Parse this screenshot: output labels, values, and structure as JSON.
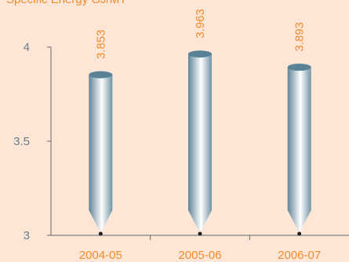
{
  "chart_data": {
    "type": "bar",
    "title": "Specific Energy GJ/MT",
    "categories": [
      "2004-05",
      "2005-06",
      "2006-07"
    ],
    "values": [
      3.853,
      3.963,
      3.893
    ],
    "color": "#7fa3b8",
    "ylim": [
      3,
      4
    ],
    "yticks": [
      3,
      3.5,
      4
    ]
  }
}
